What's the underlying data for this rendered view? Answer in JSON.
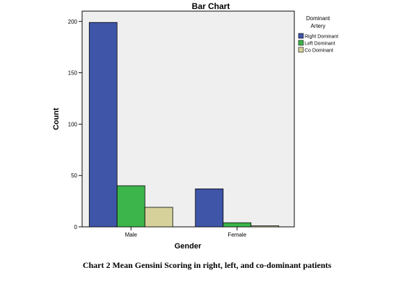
{
  "chart_data": {
    "type": "bar",
    "title": "Bar Chart",
    "xlabel": "Gender",
    "ylabel": "Count",
    "categories": [
      "Male",
      "Female"
    ],
    "series": [
      {
        "name": "Right Dominant",
        "values": [
          199,
          37
        ],
        "color": "#3f55a8"
      },
      {
        "name": "Left Dominant",
        "values": [
          40,
          4
        ],
        "color": "#3cb54a"
      },
      {
        "name": "Co Dominant",
        "values": [
          19,
          1
        ],
        "color": "#d6d09a"
      }
    ],
    "ylim": [
      0,
      210
    ],
    "yticks": [
      0,
      50,
      100,
      150,
      200
    ],
    "legend": {
      "title_line1": "Dominant",
      "title_line2": "Artery",
      "position": "right"
    },
    "plot_background": "#efefef",
    "grid": false
  },
  "caption": "Chart 2 Mean Gensini Scoring in right, left, and co-dominant patients"
}
